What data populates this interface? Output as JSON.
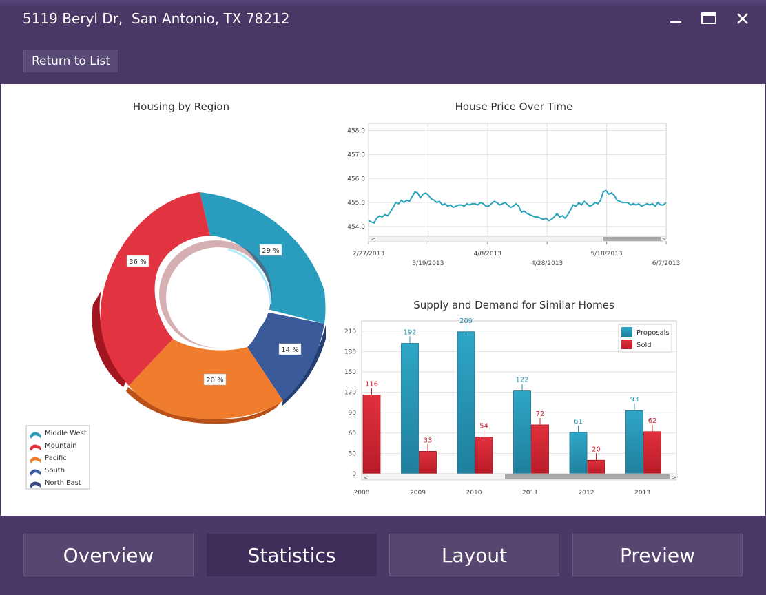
{
  "window": {
    "title": "5119 Beryl Dr,  San Antonio, TX 78212"
  },
  "toolbar": {
    "return_label": "Return to List"
  },
  "nav": {
    "tabs": [
      {
        "label": "Overview"
      },
      {
        "label": "Statistics",
        "active": true
      },
      {
        "label": "Layout"
      },
      {
        "label": "Preview"
      }
    ]
  },
  "colors": {
    "background": "#4a3966",
    "middle_west": "#2a9dbf",
    "mountain": "#e23340",
    "pacific": "#f07d2e",
    "south": "#3a5a9a",
    "north_east": "#3b4a82",
    "line": "#29a3bb",
    "proposals": "#2a93b2",
    "sold": "#d32330"
  },
  "chart_data": [
    {
      "type": "pie",
      "title": "Housing by Region",
      "categories": [
        "Middle West",
        "Mountain",
        "Pacific",
        "South",
        "North East"
      ],
      "labels": [
        "29 %",
        "36 %",
        "20 %",
        "14 %"
      ],
      "legend": [
        "Middle West",
        "Mountain",
        "Pacific",
        "South",
        "North East"
      ],
      "legend_position": "bottom-left"
    },
    {
      "type": "line",
      "title": "House Price Over Time",
      "x_ticks": [
        "2/27/2013",
        "3/19/2013",
        "4/8/2013",
        "4/28/2013",
        "5/18/2013",
        "6/7/2013"
      ],
      "y_ticks": [
        "458.0",
        "457.0",
        "456.0",
        "455.0",
        "454.0"
      ],
      "ylim": [
        453.6,
        458.3
      ],
      "grid": true,
      "y": [
        454.25,
        454.2,
        454.15,
        454.35,
        454.45,
        454.4,
        454.5,
        454.45,
        454.6,
        454.8,
        455.0,
        454.95,
        455.1,
        455.0,
        455.1,
        455.05,
        455.25,
        455.45,
        455.4,
        455.2,
        455.35,
        455.4,
        455.3,
        455.15,
        455.1,
        455.0,
        455.05,
        454.9,
        454.95,
        454.85,
        454.9,
        454.8,
        454.85,
        454.9,
        454.9,
        454.85,
        454.95,
        454.9,
        454.95,
        454.95,
        454.9,
        455.0,
        454.95,
        454.85,
        454.85,
        454.95,
        455.05,
        455.0,
        454.9,
        454.95,
        455.0,
        454.9,
        454.8,
        454.85,
        454.95,
        454.85,
        454.6,
        454.65,
        454.55,
        454.5,
        454.45,
        454.4,
        454.4,
        454.35,
        454.3,
        454.35,
        454.25,
        454.3,
        454.4,
        454.55,
        454.4,
        454.45,
        454.35,
        454.5,
        454.7,
        454.9,
        454.85,
        455.0,
        454.9,
        455.05,
        454.95,
        454.85,
        454.9,
        455.0,
        454.95,
        455.1,
        455.45,
        455.5,
        455.35,
        455.4,
        455.3,
        455.1,
        455.05,
        455.0,
        455.0,
        455.0,
        454.9,
        454.95,
        454.9,
        454.95,
        454.85,
        454.9,
        454.95,
        454.9,
        454.95,
        454.85,
        455.0,
        454.9,
        454.9,
        455.0
      ]
    },
    {
      "type": "bar",
      "title": "Supply and Demand for Similar Homes",
      "categories": [
        "2008",
        "2009",
        "2010",
        "2011",
        "2012",
        "2013"
      ],
      "y_ticks": [
        "0",
        "30",
        "60",
        "90",
        "120",
        "150",
        "180",
        "210"
      ],
      "ylim": [
        0,
        225
      ],
      "grid": true,
      "legend_position": "top-right",
      "series": [
        {
          "name": "Proposals",
          "values": [
            null,
            192,
            209,
            122,
            61,
            93
          ],
          "labels": [
            "",
            "192",
            "209",
            "122",
            "61",
            "93"
          ]
        },
        {
          "name": "Sold",
          "values": [
            116,
            33,
            54,
            72,
            20,
            62
          ],
          "labels": [
            "116",
            "33",
            "54",
            "72",
            "20",
            "62"
          ]
        }
      ]
    }
  ]
}
